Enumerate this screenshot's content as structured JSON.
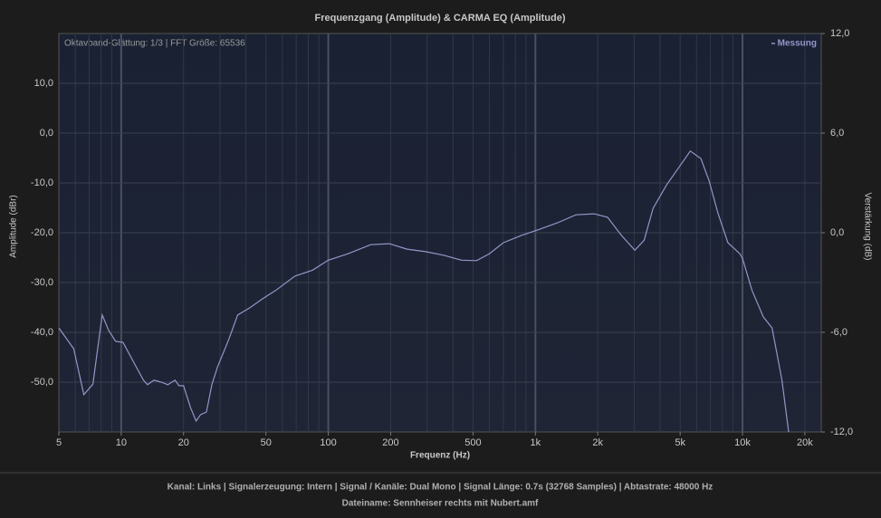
{
  "chart_data": {
    "type": "line",
    "title": "Frequenzgang (Amplitude) & CARMA EQ (Amplitude)",
    "annotation": "Oktavband-Glättung: 1/3 | FFT Größe: 65536",
    "x_label": "Frequenz (Hz)",
    "y_label": "Amplitude (dBr)",
    "y2_label": "Verstärkung (dB)",
    "x_scale": "log",
    "grid": true,
    "legend": "top-right",
    "xlim": [
      5,
      24000
    ],
    "xticks": [
      5,
      10,
      20,
      50,
      100,
      200,
      500,
      {
        "value": 1000,
        "label": "1k"
      },
      {
        "value": 2000,
        "label": "2k"
      },
      {
        "value": 5000,
        "label": "5k"
      },
      {
        "value": 10000,
        "label": "10k"
      },
      {
        "value": 20000,
        "label": "20k"
      }
    ],
    "x_minor_grid": [
      6,
      7,
      8,
      9,
      10,
      20,
      30,
      40,
      50,
      60,
      70,
      80,
      90,
      100,
      200,
      300,
      400,
      500,
      600,
      700,
      800,
      900,
      1000,
      2000,
      3000,
      4000,
      5000,
      6000,
      7000,
      8000,
      9000,
      10000,
      20000
    ],
    "ylim": [
      -60,
      20
    ],
    "yticks": [
      {
        "value": -50,
        "label": "-50,0"
      },
      {
        "value": -40,
        "label": "-40,0"
      },
      {
        "value": -30,
        "label": "-30,0"
      },
      {
        "value": -20,
        "label": "-20,0"
      },
      {
        "value": -10,
        "label": "-10,0"
      },
      {
        "value": 0,
        "label": "0,0"
      },
      {
        "value": 10,
        "label": "10,0"
      }
    ],
    "y2lim": [
      -12,
      12
    ],
    "y2ticks": [
      {
        "value": -12,
        "label": "-12,0"
      },
      {
        "value": -6,
        "label": "-6,0"
      },
      {
        "value": 0,
        "label": "0,0"
      },
      {
        "value": 6,
        "label": "6,0"
      },
      {
        "value": 12,
        "label": "12,0"
      }
    ],
    "x": [
      5,
      5.9,
      6.6,
      7.3,
      8.1,
      8.7,
      9.4,
      10.2,
      11.8,
      12.8,
      13.4,
      14.4,
      15.6,
      16.8,
      18.2,
      19,
      20,
      21.6,
      23,
      24.2,
      25.8,
      27.4,
      29.2,
      30.7,
      33,
      36.5,
      41.6,
      48,
      56,
      69,
      84,
      100,
      125,
      160,
      197,
      240,
      295,
      360,
      440,
      520,
      600,
      700,
      860,
      1050,
      1280,
      1570,
      1920,
      2230,
      2600,
      3020,
      3350,
      3700,
      4300,
      5000,
      5600,
      6300,
      6900,
      7600,
      8500,
      9700,
      10000,
      11100,
      12600,
      13900,
      15500,
      16700
    ],
    "series": [
      {
        "name": "Messung",
        "color": "#9595c8",
        "values": [
          -39.1,
          -43.3,
          -52.5,
          -50.4,
          -36.5,
          -39.6,
          -41.8,
          -42,
          -46.9,
          -49.6,
          -50.5,
          -49.6,
          -50,
          -50.5,
          -49.6,
          -50.7,
          -50.7,
          -55.1,
          -57.8,
          -56.5,
          -56,
          -50.5,
          -46.9,
          -44.7,
          -41.5,
          -36.5,
          -35.1,
          -33.3,
          -31.5,
          -28.7,
          -27.5,
          -25.5,
          -24.2,
          -22.4,
          -22.2,
          -23.3,
          -23.8,
          -24.5,
          -25.5,
          -25.6,
          -24.2,
          -22,
          -20.5,
          -19.3,
          -18,
          -16.4,
          -16.2,
          -16.9,
          -20.5,
          -23.5,
          -21.5,
          -15.1,
          -10.4,
          -6.5,
          -3.6,
          -5.1,
          -9.6,
          -16,
          -22,
          -24.2,
          -25.1,
          -31.5,
          -36.9,
          -39.1,
          -49.6,
          -60
        ]
      }
    ]
  },
  "footer": {
    "line1": "Kanal: Links  |  Signalerzeugung: Intern  |  Signal / Kanäle: Dual Mono  |  Signal Länge: 0.7s (32768 Samples)  |  Abtastrate: 48000 Hz",
    "line2": "Dateiname: Sennheiser rechts mit Nubert.amf"
  }
}
